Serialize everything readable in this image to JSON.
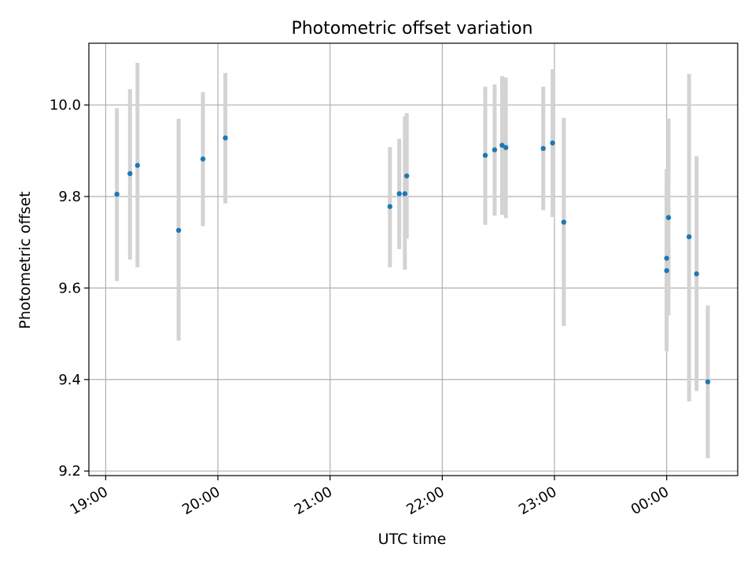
{
  "chart_data": {
    "type": "scatter",
    "title": "Photometric offset variation",
    "xlabel": "UTC time",
    "ylabel": "Photometric offset",
    "x_axis_type": "time",
    "xlim": [
      "2023-01-01T18:51",
      "2023-01-02T00:38"
    ],
    "ylim": [
      9.19,
      10.135
    ],
    "x_ticks": [
      {
        "time": "2023-01-01T19:00",
        "label": "19:00"
      },
      {
        "time": "2023-01-01T20:00",
        "label": "20:00"
      },
      {
        "time": "2023-01-01T21:00",
        "label": "21:00"
      },
      {
        "time": "2023-01-01T22:00",
        "label": "22:00"
      },
      {
        "time": "2023-01-01T23:00",
        "label": "23:00"
      },
      {
        "time": "2023-01-02T00:00",
        "label": "00:00"
      }
    ],
    "y_ticks": [
      {
        "value": 9.2,
        "label": "9.2"
      },
      {
        "value": 9.4,
        "label": "9.4"
      },
      {
        "value": 9.6,
        "label": "9.6"
      },
      {
        "value": 9.8,
        "label": "9.8"
      },
      {
        "value": 10.0,
        "label": "10.0"
      }
    ],
    "grid": true,
    "point_color": "#1f77b4",
    "errorbar_color": "#d3d3d3",
    "points": [
      {
        "x": "2023-01-01T19:06",
        "y": 9.805,
        "low": 9.615,
        "high": 9.993
      },
      {
        "x": "2023-01-01T19:13",
        "y": 9.85,
        "low": 9.662,
        "high": 10.035
      },
      {
        "x": "2023-01-01T19:17",
        "y": 9.868,
        "low": 9.645,
        "high": 10.092
      },
      {
        "x": "2023-01-01T19:39",
        "y": 9.726,
        "low": 9.485,
        "high": 9.97
      },
      {
        "x": "2023-01-01T19:52",
        "y": 9.882,
        "low": 9.735,
        "high": 10.028
      },
      {
        "x": "2023-01-01T20:04",
        "y": 9.928,
        "low": 9.785,
        "high": 10.07
      },
      {
        "x": "2023-01-01T21:32",
        "y": 9.778,
        "low": 9.645,
        "high": 9.908
      },
      {
        "x": "2023-01-01T21:37",
        "y": 9.806,
        "low": 9.685,
        "high": 9.926
      },
      {
        "x": "2023-01-01T21:40",
        "y": 9.806,
        "low": 9.64,
        "high": 9.975
      },
      {
        "x": "2023-01-01T21:41",
        "y": 9.845,
        "low": 9.708,
        "high": 9.982
      },
      {
        "x": "2023-01-01T22:23",
        "y": 9.89,
        "low": 9.738,
        "high": 10.04
      },
      {
        "x": "2023-01-01T22:28",
        "y": 9.902,
        "low": 9.758,
        "high": 10.045
      },
      {
        "x": "2023-01-01T22:32",
        "y": 9.912,
        "low": 9.76,
        "high": 10.063
      },
      {
        "x": "2023-01-01T22:34",
        "y": 9.907,
        "low": 9.753,
        "high": 10.06
      },
      {
        "x": "2023-01-01T22:54",
        "y": 9.905,
        "low": 9.77,
        "high": 10.04
      },
      {
        "x": "2023-01-01T22:59",
        "y": 9.917,
        "low": 9.755,
        "high": 10.078
      },
      {
        "x": "2023-01-01T23:05",
        "y": 9.744,
        "low": 9.517,
        "high": 9.972
      },
      {
        "x": "2023-01-02T00:00",
        "y": 9.638,
        "low": 9.462,
        "high": 9.838
      },
      {
        "x": "2023-01-02T00:00",
        "y": 9.665,
        "low": 9.475,
        "high": 9.86
      },
      {
        "x": "2023-01-02T00:01",
        "y": 9.754,
        "low": 9.54,
        "high": 9.97
      },
      {
        "x": "2023-01-02T00:12",
        "y": 9.712,
        "low": 9.352,
        "high": 10.068
      },
      {
        "x": "2023-01-02T00:16",
        "y": 9.631,
        "low": 9.375,
        "high": 9.888
      },
      {
        "x": "2023-01-02T00:22",
        "y": 9.395,
        "low": 9.228,
        "high": 9.562
      }
    ]
  }
}
